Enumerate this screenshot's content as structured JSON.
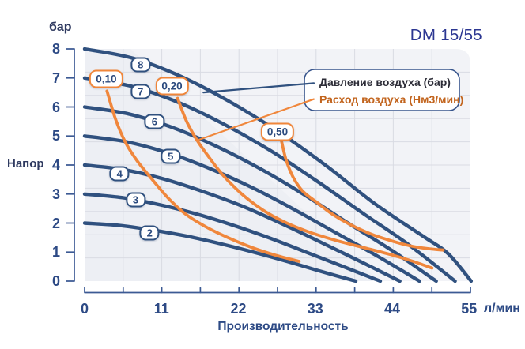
{
  "title": "DM 15/55",
  "y_axis": {
    "unit": "бар",
    "label": "Напор",
    "ticks": [
      "8",
      "7",
      "6",
      "5",
      "4",
      "3",
      "2",
      "1",
      "0"
    ]
  },
  "x_axis": {
    "unit": "л/мин",
    "label": "Производительность",
    "ticks": [
      "0",
      "11",
      "22",
      "33",
      "44",
      "55"
    ]
  },
  "legend": {
    "pressure_label": "Давление воздуха (бар)",
    "flow_label": "Расход воздуха (Нм3/мин)"
  },
  "colors": {
    "pressure_curve": "#30517f",
    "flow_curve": "#f0873c",
    "axis": "#3c5a94",
    "grid": "#d9dbe3",
    "plot_bg": "#edeff4",
    "tick_text": "#2d4a85",
    "title_text": "#2c3792",
    "legend_pressure_text": "#2b2b36",
    "legend_flow_text": "#c2641d"
  },
  "chart_data": {
    "type": "line",
    "title": "DM 15/55",
    "xlabel": "Производительность (л/мин)",
    "ylabel": "Напор (бар)",
    "xlim": [
      0,
      55.2
    ],
    "ylim": [
      0,
      8
    ],
    "grid": {
      "cols": 10,
      "rows": 10
    },
    "legend_position": "top-right",
    "series": [
      {
        "name": "8",
        "group": "pressure",
        "label_at": [
          8.0,
          7.46
        ],
        "points": [
          [
            0,
            8.0
          ],
          [
            6.9,
            7.68
          ],
          [
            13.8,
            7.05
          ],
          [
            20.7,
            6.19
          ],
          [
            27.7,
            5.15
          ],
          [
            34.6,
            3.97
          ],
          [
            41.5,
            2.67
          ],
          [
            48.4,
            1.55
          ],
          [
            52,
            0.95
          ],
          [
            55.3,
            0
          ]
        ]
      },
      {
        "name": "7",
        "group": "pressure",
        "label_at": [
          8.0,
          6.53
        ],
        "points": [
          [
            0,
            7.0
          ],
          [
            6.6,
            6.72
          ],
          [
            13.3,
            6.17
          ],
          [
            19.9,
            5.41
          ],
          [
            26.5,
            4.51
          ],
          [
            33.1,
            3.47
          ],
          [
            39.8,
            2.34
          ],
          [
            46.4,
            1.25
          ],
          [
            53.0,
            0
          ]
        ]
      },
      {
        "name": "6",
        "group": "pressure",
        "label_at": [
          10.0,
          5.5
        ],
        "points": [
          [
            0,
            6.0
          ],
          [
            6.3,
            5.76
          ],
          [
            12.6,
            5.29
          ],
          [
            18.9,
            4.64
          ],
          [
            25.2,
            3.86
          ],
          [
            31.4,
            2.98
          ],
          [
            37.7,
            2.0
          ],
          [
            44.0,
            1.05
          ],
          [
            50.3,
            0
          ]
        ]
      },
      {
        "name": "5",
        "group": "pressure",
        "label_at": [
          12.3,
          4.3
        ],
        "points": [
          [
            0,
            5.0
          ],
          [
            6.0,
            4.8
          ],
          [
            12.0,
            4.41
          ],
          [
            18.0,
            3.87
          ],
          [
            24.0,
            3.22
          ],
          [
            29.9,
            2.48
          ],
          [
            35.9,
            1.67
          ],
          [
            41.9,
            0.86
          ],
          [
            47.9,
            0
          ]
        ]
      },
      {
        "name": "4",
        "group": "pressure",
        "label_at": [
          5.0,
          3.7
        ],
        "points": [
          [
            0,
            4.0
          ],
          [
            5.6,
            3.84
          ],
          [
            11.3,
            3.52
          ],
          [
            16.9,
            3.09
          ],
          [
            22.6,
            2.58
          ],
          [
            28.2,
            1.98
          ],
          [
            33.8,
            1.34
          ],
          [
            39.5,
            0.67
          ],
          [
            45.1,
            0
          ]
        ]
      },
      {
        "name": "3",
        "group": "pressure",
        "label_at": [
          7.3,
          2.8
        ],
        "points": [
          [
            0,
            3.0
          ],
          [
            5.3,
            2.88
          ],
          [
            10.6,
            2.64
          ],
          [
            15.9,
            2.32
          ],
          [
            21.2,
            1.93
          ],
          [
            26.4,
            1.49
          ],
          [
            31.7,
            1.0
          ],
          [
            37.0,
            0.5
          ],
          [
            42.3,
            0
          ]
        ]
      },
      {
        "name": "2",
        "group": "pressure",
        "label_at": [
          9.3,
          1.67
        ],
        "points": [
          [
            0,
            2.0
          ],
          [
            4.9,
            1.92
          ],
          [
            9.7,
            1.76
          ],
          [
            14.6,
            1.55
          ],
          [
            19.4,
            1.29
          ],
          [
            24.3,
            0.99
          ],
          [
            29.1,
            0.67
          ],
          [
            33.9,
            0.33
          ],
          [
            38.8,
            0
          ]
        ]
      },
      {
        "name": "0,10",
        "group": "flow",
        "label_at": [
          3.1,
          6.97
        ],
        "points": [
          [
            3.2,
            6.55
          ],
          [
            4.4,
            5.6
          ],
          [
            5.8,
            4.8
          ],
          [
            7.5,
            4.15
          ],
          [
            9.5,
            3.55
          ],
          [
            12.0,
            2.85
          ],
          [
            14.5,
            2.3
          ],
          [
            17.5,
            1.85
          ],
          [
            20.5,
            1.5
          ],
          [
            24.0,
            1.15
          ],
          [
            27.5,
            0.88
          ],
          [
            30.7,
            0.68
          ]
        ]
      },
      {
        "name": "0,20",
        "group": "flow",
        "label_at": [
          12.5,
          6.72
        ],
        "points": [
          [
            13.3,
            6.3
          ],
          [
            14.6,
            5.5
          ],
          [
            16.1,
            4.85
          ],
          [
            17.7,
            4.3
          ],
          [
            19.8,
            3.65
          ],
          [
            22.5,
            3.0
          ],
          [
            25.5,
            2.45
          ],
          [
            28.5,
            2.05
          ],
          [
            32.0,
            1.7
          ],
          [
            36.0,
            1.4
          ],
          [
            40.0,
            1.15
          ],
          [
            44.0,
            0.9
          ],
          [
            47.0,
            0.68
          ],
          [
            49.7,
            0.45
          ]
        ]
      },
      {
        "name": "0,50",
        "group": "flow",
        "label_at": [
          27.6,
          5.14
        ],
        "points": [
          [
            28.1,
            4.9
          ],
          [
            28.8,
            4.2
          ],
          [
            29.8,
            3.6
          ],
          [
            31.2,
            3.1
          ],
          [
            33.3,
            2.7
          ],
          [
            35.5,
            2.3
          ],
          [
            38.0,
            1.95
          ],
          [
            41.0,
            1.62
          ],
          [
            44.0,
            1.38
          ],
          [
            46.5,
            1.22
          ],
          [
            49.0,
            1.12
          ],
          [
            51.3,
            1.07
          ]
        ]
      }
    ],
    "annotations": {
      "pointers": [
        {
          "color": "pressure",
          "from": [
            32.8,
            6.82
          ],
          "to": [
            17.0,
            6.5
          ]
        },
        {
          "color": "flow",
          "from": [
            32.8,
            6.27
          ],
          "to": [
            16.1,
            4.85
          ]
        }
      ]
    }
  }
}
